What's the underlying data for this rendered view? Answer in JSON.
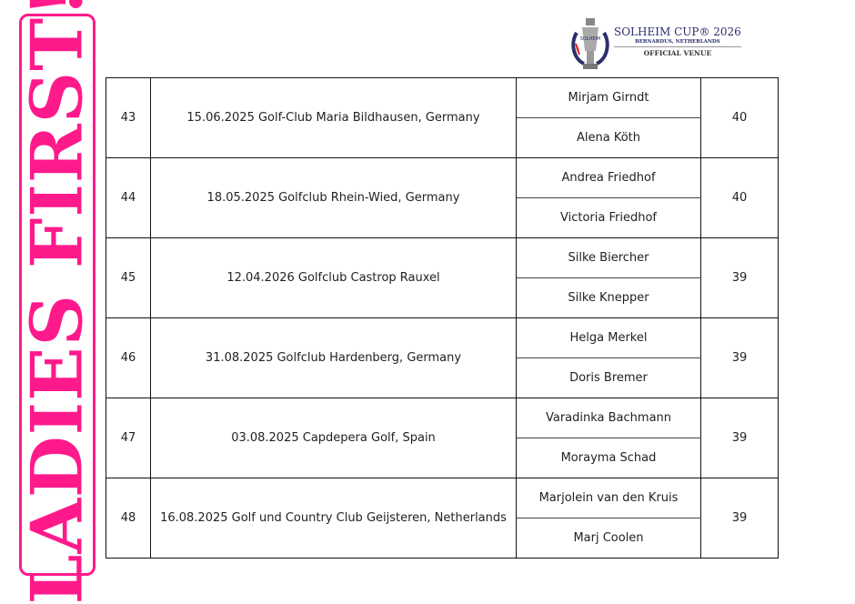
{
  "banner": {
    "text": "LADIES FIRST!",
    "color": "#ff1a8c"
  },
  "logo": {
    "title": "SOLHEIM CUP® 2026",
    "subtitle": "BERNARDUS, NETHERLANDS",
    "tag": "OFFICIAL VENUE",
    "trophy_text": "SOLHEIM CUP"
  },
  "rows": [
    {
      "rank": "43",
      "event": "15.06.2025 Golf-Club Maria Bildhausen, Germany",
      "players": [
        "Mirjam Girndt",
        "Alena Köth"
      ],
      "score": "40"
    },
    {
      "rank": "44",
      "event": "18.05.2025 Golfclub Rhein-Wied, Germany",
      "players": [
        "Andrea Friedhof",
        "Victoria Friedhof"
      ],
      "score": "40"
    },
    {
      "rank": "45",
      "event": "12.04.2026 Golfclub Castrop Rauxel",
      "players": [
        "Silke Biercher",
        "Silke Knepper"
      ],
      "score": "39"
    },
    {
      "rank": "46",
      "event": "31.08.2025 Golfclub Hardenberg, Germany",
      "players": [
        "Helga Merkel",
        "Doris Bremer"
      ],
      "score": "39"
    },
    {
      "rank": "47",
      "event": "03.08.2025 Capdepera Golf, Spain",
      "players": [
        "Varadinka Bachmann",
        "Morayma Schad"
      ],
      "score": "39"
    },
    {
      "rank": "48",
      "event": "16.08.2025 Golf und Country Club Geijsteren, Netherlands",
      "players": [
        "Marjolein van den Kruis",
        "Marj Coolen"
      ],
      "score": "39"
    }
  ]
}
